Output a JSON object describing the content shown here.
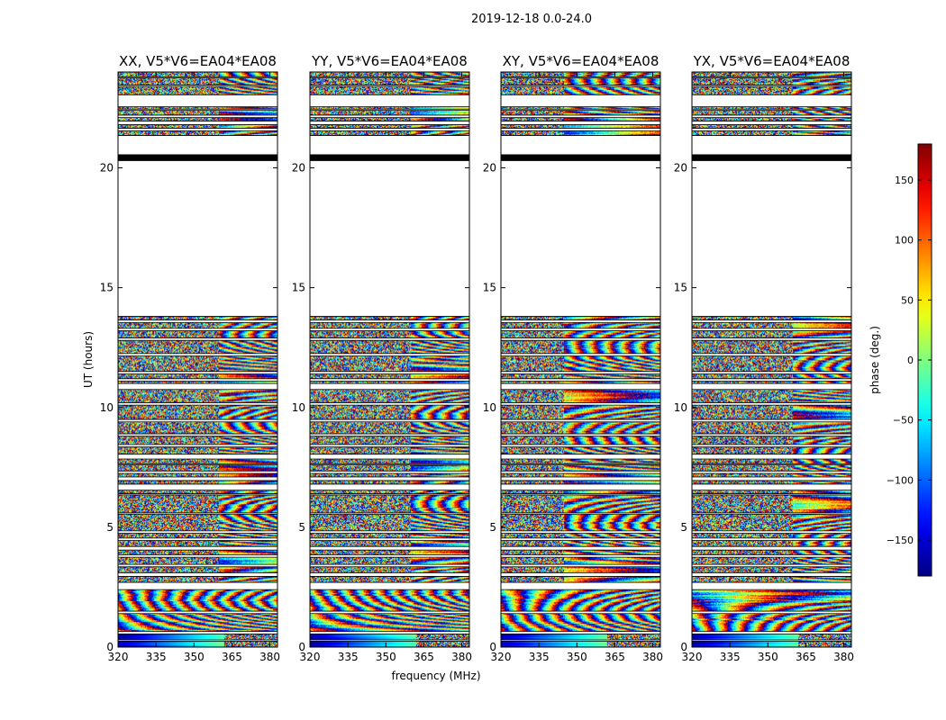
{
  "figure": {
    "suptitle": "2019-12-18 0.0-24.0"
  },
  "chart_data": [
    {
      "type": "heatmap",
      "title": "XX, V5*V6=EA04*EA08",
      "xlabel": "frequency (MHz)",
      "ylabel": "UT (hours)",
      "xlim": [
        320,
        383
      ],
      "ylim": [
        0,
        24
      ],
      "xticks": [
        320,
        335,
        350,
        365,
        380
      ],
      "yticks": [
        0,
        5,
        10,
        15,
        20
      ],
      "seed": 11,
      "flat_from_mhz": 360
    },
    {
      "type": "heatmap",
      "title": "YY, V5*V6=EA04*EA08",
      "xlabel": "frequency (MHz)",
      "ylabel": "",
      "xlim": [
        320,
        383
      ],
      "ylim": [
        0,
        24
      ],
      "xticks": [
        320,
        335,
        350,
        365,
        380
      ],
      "yticks": [
        0,
        5,
        10,
        15,
        20
      ],
      "seed": 23,
      "flat_from_mhz": 360
    },
    {
      "type": "heatmap",
      "title": "XY, V5*V6=EA04*EA08",
      "xlabel": "",
      "ylabel": "",
      "xlim": [
        320,
        383
      ],
      "ylim": [
        0,
        24
      ],
      "xticks": [
        320,
        335,
        350,
        365,
        380
      ],
      "yticks": [
        0,
        5,
        10,
        15,
        20
      ],
      "seed": 37,
      "flat_from_mhz": 345
    },
    {
      "type": "heatmap",
      "title": "YX, V5*V6=EA04*EA08",
      "xlabel": "",
      "ylabel": "",
      "xlim": [
        320,
        383
      ],
      "ylim": [
        0,
        24
      ],
      "xticks": [
        320,
        335,
        350,
        365,
        380
      ],
      "yticks": [
        0,
        5,
        10,
        15,
        20
      ],
      "seed": 51,
      "flat_from_mhz": 360
    }
  ],
  "colorbar": {
    "label": "phase (deg.)",
    "range": [
      -180,
      180
    ],
    "ticks": [
      -150,
      -100,
      -50,
      0,
      50,
      100,
      150
    ],
    "tick_labels": [
      "−150",
      "−100",
      "−50",
      "0",
      "50",
      "100",
      "150"
    ],
    "colormap": "jet"
  },
  "data_segments_ut_hours": [
    [
      0.0,
      0.25
    ],
    [
      0.3,
      0.55
    ],
    [
      0.65,
      1.4
    ],
    [
      1.5,
      2.4
    ],
    [
      2.7,
      2.95
    ],
    [
      3.1,
      3.35
    ],
    [
      3.45,
      3.75
    ],
    [
      3.85,
      4.05
    ],
    [
      4.2,
      4.45
    ],
    [
      4.55,
      4.75
    ],
    [
      4.85,
      5.55
    ],
    [
      5.6,
      6.35
    ],
    [
      6.4,
      6.55
    ],
    [
      6.8,
      6.95
    ],
    [
      7.1,
      7.25
    ],
    [
      7.35,
      7.6
    ],
    [
      7.65,
      7.85
    ],
    [
      8.05,
      8.35
    ],
    [
      8.45,
      8.8
    ],
    [
      8.9,
      9.4
    ],
    [
      9.5,
      10.1
    ],
    [
      10.2,
      10.75
    ],
    [
      11.0,
      11.1
    ],
    [
      11.2,
      11.4
    ],
    [
      11.5,
      12.15
    ],
    [
      12.25,
      12.8
    ],
    [
      12.9,
      13.2
    ],
    [
      13.3,
      13.55
    ],
    [
      13.65,
      13.8
    ],
    [
      20.3,
      20.55
    ],
    [
      21.35,
      21.55
    ],
    [
      21.65,
      21.8
    ],
    [
      21.95,
      22.1
    ],
    [
      22.2,
      22.4
    ],
    [
      22.45,
      22.55
    ],
    [
      23.05,
      23.4
    ],
    [
      23.45,
      23.75
    ],
    [
      23.8,
      24.0
    ]
  ],
  "black_segments_ut_hours": [
    [
      20.3,
      20.55
    ]
  ]
}
